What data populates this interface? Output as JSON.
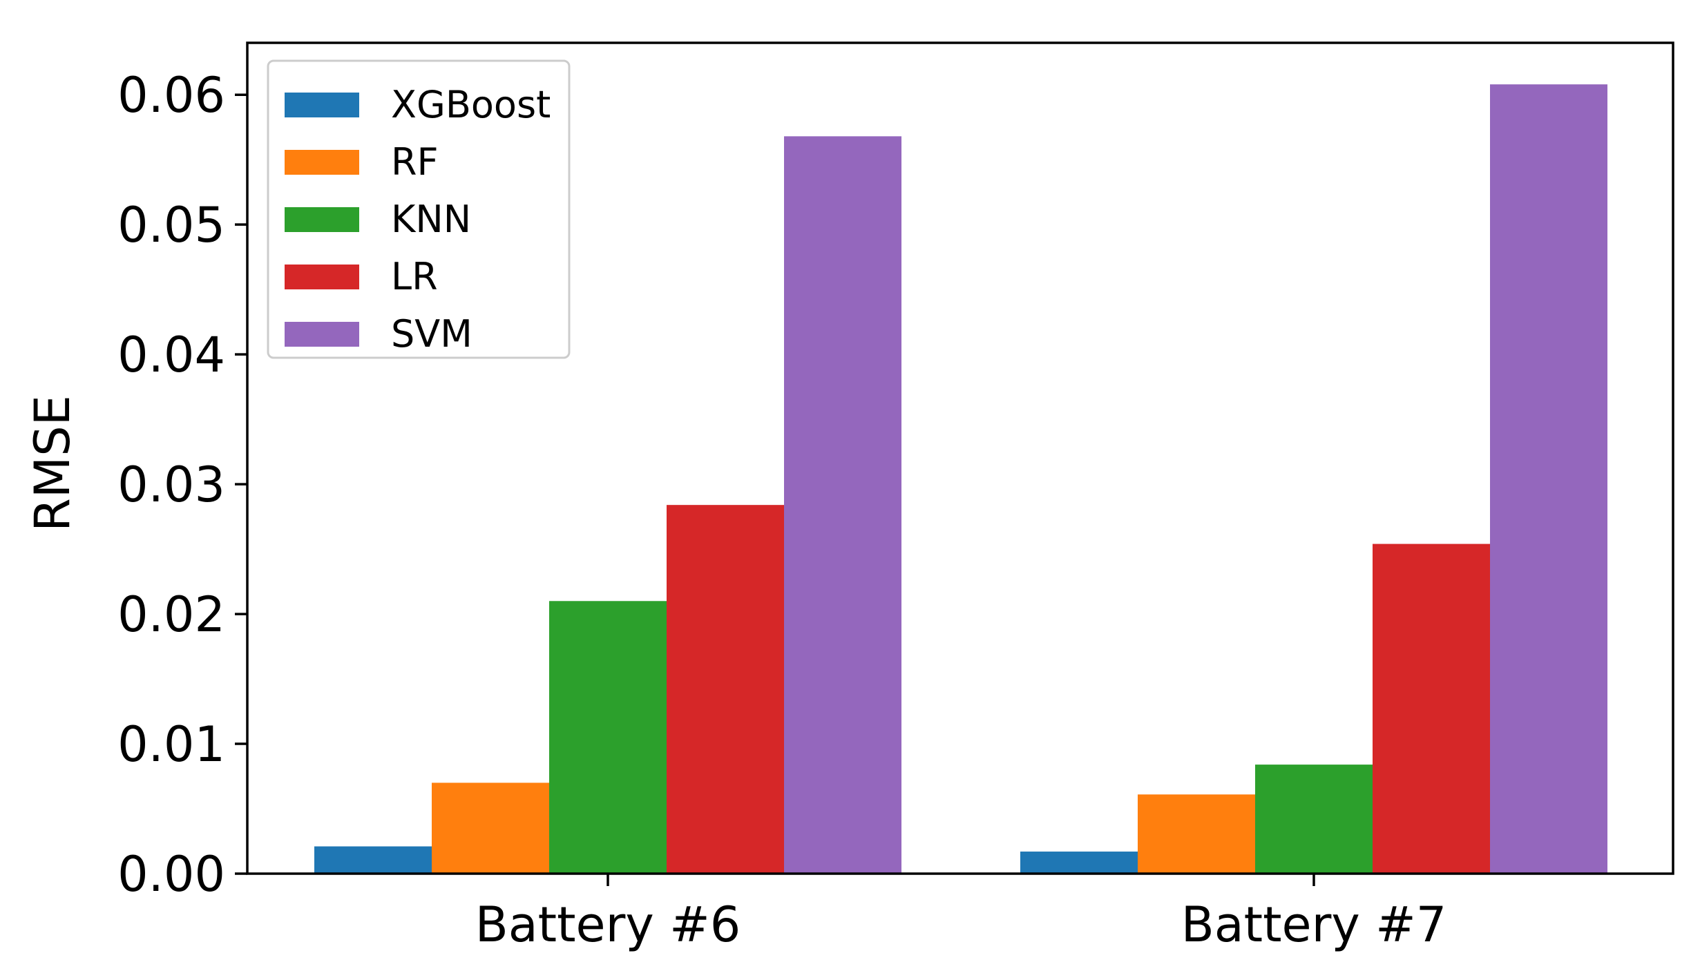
{
  "chart_data": {
    "type": "bar",
    "categories": [
      "Battery #6",
      "Battery #7"
    ],
    "series": [
      {
        "name": "XGBoost",
        "color": "#1f77b4",
        "values": [
          0.0021,
          0.0017
        ]
      },
      {
        "name": "RF",
        "color": "#ff7f0e",
        "values": [
          0.007,
          0.0061
        ]
      },
      {
        "name": "KNN",
        "color": "#2ca02c",
        "values": [
          0.021,
          0.0084
        ]
      },
      {
        "name": "LR",
        "color": "#d62728",
        "values": [
          0.0284,
          0.0254
        ]
      },
      {
        "name": "SVM",
        "color": "#9467bd",
        "values": [
          0.0568,
          0.0608
        ]
      }
    ],
    "xlabel": "",
    "ylabel": "RMSE",
    "ylim": [
      0,
      0.064
    ],
    "yticks": [
      0.0,
      0.01,
      0.02,
      0.03,
      0.04,
      0.05,
      0.06
    ],
    "ytick_labels": [
      "0.00",
      "0.01",
      "0.02",
      "0.03",
      "0.04",
      "0.05",
      "0.06"
    ],
    "legend": "top-left",
    "grid": false
  }
}
